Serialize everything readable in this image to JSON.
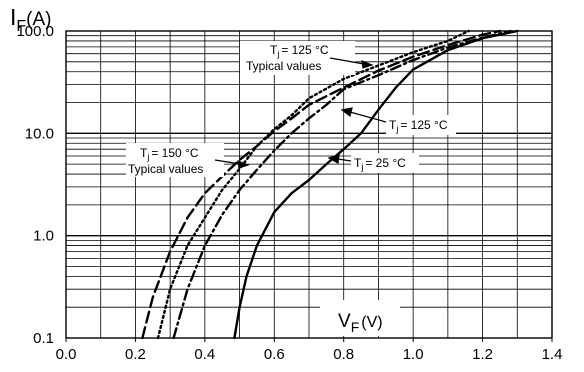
{
  "chart_data": {
    "type": "line",
    "x_axis": {
      "label_main": "V",
      "label_sub": "F",
      "label_unit": "(V)",
      "range": [
        0.0,
        1.4
      ],
      "ticks": [
        "0.0",
        "0.2",
        "0.4",
        "0.6",
        "0.8",
        "1.0",
        "1.2",
        "1.4"
      ]
    },
    "y_axis": {
      "label_main": "I",
      "label_sub": "F",
      "label_unit": "(A)",
      "scale": "log",
      "range": [
        0.1,
        100.0
      ],
      "ticks": [
        "0.1",
        "1.0",
        "10.0",
        "100.0"
      ]
    },
    "grid": true,
    "series": [
      {
        "label_prefix": "T",
        "label_sub": "j",
        "label_suffix": "= 125 °C",
        "label_line2": "Typical values",
        "style": "dotted",
        "points": [
          [
            0.265,
            0.1
          ],
          [
            0.3,
            0.3
          ],
          [
            0.35,
            0.8
          ],
          [
            0.4,
            1.5
          ],
          [
            0.45,
            2.8
          ],
          [
            0.5,
            4.5
          ],
          [
            0.55,
            7.5
          ],
          [
            0.6,
            11
          ],
          [
            0.65,
            15
          ],
          [
            0.7,
            22
          ],
          [
            0.8,
            34
          ],
          [
            0.9,
            46
          ],
          [
            1.0,
            62
          ],
          [
            1.1,
            80
          ],
          [
            1.16,
            100
          ]
        ]
      },
      {
        "label_prefix": "T",
        "label_sub": "j",
        "label_suffix": "= 150 °C",
        "label_line2": "Typical values",
        "style": "long-dash",
        "points": [
          [
            0.22,
            0.1
          ],
          [
            0.25,
            0.25
          ],
          [
            0.3,
            0.7
          ],
          [
            0.35,
            1.5
          ],
          [
            0.4,
            2.6
          ],
          [
            0.45,
            3.8
          ],
          [
            0.5,
            5.5
          ],
          [
            0.55,
            7.5
          ],
          [
            0.6,
            10.5
          ],
          [
            0.65,
            14
          ],
          [
            0.7,
            19
          ],
          [
            0.8,
            28
          ],
          [
            0.9,
            41
          ],
          [
            1.0,
            56
          ],
          [
            1.1,
            73
          ],
          [
            1.2,
            92
          ],
          [
            1.25,
            100
          ]
        ]
      },
      {
        "label_prefix": "T",
        "label_sub": "j",
        "label_suffix": "= 125 °C",
        "label_line2": "",
        "style": "dash-dot",
        "points": [
          [
            0.31,
            0.1
          ],
          [
            0.35,
            0.3
          ],
          [
            0.4,
            0.8
          ],
          [
            0.45,
            1.6
          ],
          [
            0.5,
            2.8
          ],
          [
            0.55,
            4.4
          ],
          [
            0.6,
            6.8
          ],
          [
            0.65,
            10
          ],
          [
            0.7,
            14
          ],
          [
            0.75,
            19
          ],
          [
            0.8,
            27
          ],
          [
            0.9,
            37
          ],
          [
            1.0,
            52
          ],
          [
            1.1,
            69
          ],
          [
            1.2,
            86
          ],
          [
            1.28,
            100
          ]
        ]
      },
      {
        "label_prefix": "T",
        "label_sub": "j",
        "label_suffix": "= 25 °C",
        "label_line2": "",
        "style": "solid",
        "points": [
          [
            0.485,
            0.1
          ],
          [
            0.5,
            0.2
          ],
          [
            0.52,
            0.4
          ],
          [
            0.55,
            0.8
          ],
          [
            0.6,
            1.7
          ],
          [
            0.65,
            2.6
          ],
          [
            0.7,
            3.5
          ],
          [
            0.75,
            5.0
          ],
          [
            0.8,
            7.0
          ],
          [
            0.85,
            10
          ],
          [
            0.9,
            17
          ],
          [
            0.95,
            28
          ],
          [
            1.0,
            42
          ],
          [
            1.1,
            65
          ],
          [
            1.2,
            85
          ],
          [
            1.3,
            100
          ]
        ]
      }
    ]
  }
}
